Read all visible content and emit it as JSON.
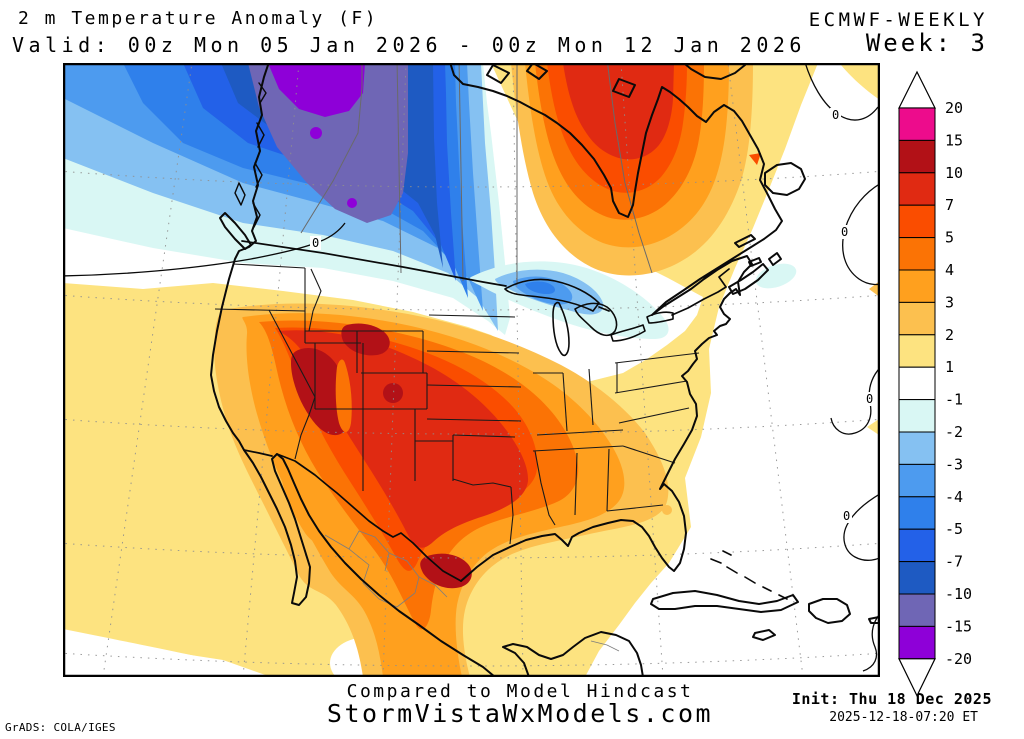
{
  "header": {
    "title": "2 m Temperature Anomaly (F)",
    "model": "ECMWF-WEEKLY",
    "valid": "Valid: 00z Mon 05 Jan 2026 - 00z Mon 12 Jan 2026",
    "week": "Week: 3"
  },
  "footer": {
    "compared": "Compared to Model Hindcast",
    "site": "StormVistaWxModels.com",
    "init": "Init: Thu 18 Dec 2025",
    "init_time": "2025-12-18-07:20 ET",
    "credit": "GrADS: COLA/IGES"
  },
  "colorbar": {
    "labels": [
      20,
      15,
      10,
      7,
      5,
      4,
      3,
      2,
      1,
      -1,
      -2,
      -3,
      -4,
      -5,
      -7,
      -10,
      -15,
      -20
    ],
    "colors": [
      "#ED0C8C",
      "#B21117",
      "#E02A12",
      "#FA4D00",
      "#FB7305",
      "#FFA01E",
      "#FCC04F",
      "#FDE380",
      "#FFFFFF",
      "#D9F7F4",
      "#85C1F2",
      "#4D9BEF",
      "#2F80EB",
      "#2361E8",
      "#1E5AC2",
      "#6F66B5",
      "#8E00D8"
    ]
  },
  "palette": {
    "p15_20": "#ED0C8C",
    "p10_15": "#B21117",
    "p7_10": "#E02A12",
    "p5_7": "#FA4D00",
    "p4_5": "#FB7305",
    "p3_4": "#FFA01E",
    "p2_3": "#FCC04F",
    "p1_2": "#FDE380",
    "zero": "#FFFFFF",
    "m1_2": "#D9F7F4",
    "m2_3": "#85C1F2",
    "m3_4": "#4D9BEF",
    "m4_5": "#2F80EB",
    "m5_7": "#2361E8",
    "m7_10": "#1E5AC2",
    "m10_15": "#6F66B5",
    "m15_20": "#8E00D8"
  },
  "map": {
    "zero_label": "0"
  }
}
